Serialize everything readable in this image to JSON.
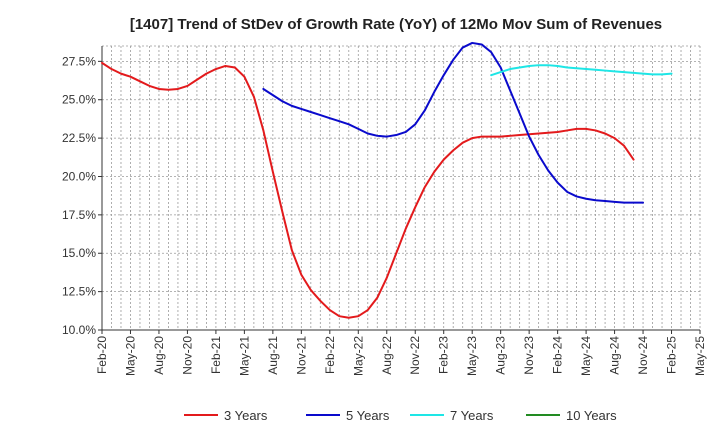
{
  "chart_data": {
    "type": "line",
    "title": "[1407]  Trend of StDev of Growth Rate (YoY) of 12Mo Mov Sum of Revenues",
    "xlabel": "",
    "ylabel": "",
    "ylim": [
      10.0,
      28.5
    ],
    "y_ticks": [
      10.0,
      12.5,
      15.0,
      17.5,
      20.0,
      22.5,
      25.0,
      27.5
    ],
    "y_tick_labels": [
      "10.0%",
      "12.5%",
      "15.0%",
      "17.5%",
      "20.0%",
      "22.5%",
      "25.0%",
      "27.5%"
    ],
    "x_tick_labels": [
      "Feb-20",
      "May-20",
      "Aug-20",
      "Nov-20",
      "Feb-21",
      "May-21",
      "Aug-21",
      "Nov-21",
      "Feb-22",
      "May-22",
      "Aug-22",
      "Nov-22",
      "Feb-23",
      "May-23",
      "Aug-23",
      "Nov-23",
      "Feb-24",
      "May-24",
      "Aug-24",
      "Nov-24",
      "Feb-25",
      "May-25"
    ],
    "x_range_months": [
      0,
      63
    ],
    "grid": true,
    "legend_position": "bottom",
    "series": [
      {
        "name": "3 Years",
        "color": "#e31a1c",
        "x": [
          0,
          1,
          2,
          3,
          4,
          5,
          6,
          7,
          8,
          9,
          10,
          11,
          12,
          13,
          14,
          15,
          16,
          17,
          18,
          19,
          20,
          21,
          22,
          23,
          24,
          25,
          26,
          27,
          28,
          29,
          30,
          31,
          32,
          33,
          34,
          35,
          36,
          37,
          38,
          39,
          40,
          41,
          42,
          43,
          44,
          45,
          46,
          47,
          48,
          49,
          50,
          51,
          52,
          53,
          54,
          55,
          56,
          57,
          58,
          59,
          60
        ],
        "values": [
          27.4,
          27.0,
          26.7,
          26.5,
          26.2,
          25.9,
          25.7,
          25.65,
          25.7,
          25.9,
          26.3,
          26.7,
          27.0,
          27.2,
          27.1,
          26.5,
          25.2,
          23.0,
          20.3,
          17.7,
          15.2,
          13.6,
          12.6,
          11.9,
          11.3,
          10.9,
          10.8,
          10.9,
          11.3,
          12.1,
          13.4,
          15.0,
          16.6,
          18.0,
          19.3,
          20.3,
          21.1,
          21.7,
          22.2,
          22.5,
          22.6,
          22.6,
          22.6,
          22.65,
          22.7,
          22.75,
          22.8,
          22.85,
          22.9,
          23.0,
          23.1,
          23.1,
          23.0,
          22.8,
          22.5,
          22.0,
          21.1,
          null,
          null,
          null,
          null
        ]
      },
      {
        "name": "5 Years",
        "color": "#0a0acc",
        "x": [
          17,
          18,
          19,
          20,
          21,
          22,
          23,
          24,
          25,
          26,
          27,
          28,
          29,
          30,
          31,
          32,
          33,
          34,
          35,
          36,
          37,
          38,
          39,
          40,
          41,
          42,
          43,
          44,
          45,
          46,
          47,
          48,
          49,
          50,
          51,
          52,
          53,
          54,
          55,
          56,
          57,
          58,
          59,
          60
        ],
        "values": [
          25.7,
          25.3,
          24.9,
          24.6,
          24.4,
          24.2,
          24.0,
          23.8,
          23.6,
          23.4,
          23.1,
          22.8,
          22.65,
          22.6,
          22.7,
          22.9,
          23.4,
          24.3,
          25.5,
          26.6,
          27.6,
          28.4,
          28.7,
          28.6,
          28.1,
          27.1,
          25.6,
          24.1,
          22.6,
          21.4,
          20.4,
          19.6,
          19.0,
          18.7,
          18.55,
          18.45,
          18.4,
          18.35,
          18.3,
          18.3,
          18.3,
          null,
          null,
          null
        ],
        "x_offset": 0
      },
      {
        "name": "7 Years",
        "color": "#1ee6e6",
        "x": [
          41,
          42,
          43,
          44,
          45,
          46,
          47,
          48,
          49,
          50,
          51,
          52,
          53,
          54,
          55,
          56,
          57,
          58,
          59,
          60
        ],
        "values": [
          26.6,
          26.8,
          27.0,
          27.1,
          27.2,
          27.25,
          27.25,
          27.2,
          27.1,
          27.05,
          27.0,
          26.95,
          26.9,
          26.85,
          26.8,
          26.75,
          26.7,
          26.65,
          26.65,
          26.7
        ]
      },
      {
        "name": "10 Years",
        "color": "#228b22",
        "x": [],
        "values": []
      }
    ]
  }
}
